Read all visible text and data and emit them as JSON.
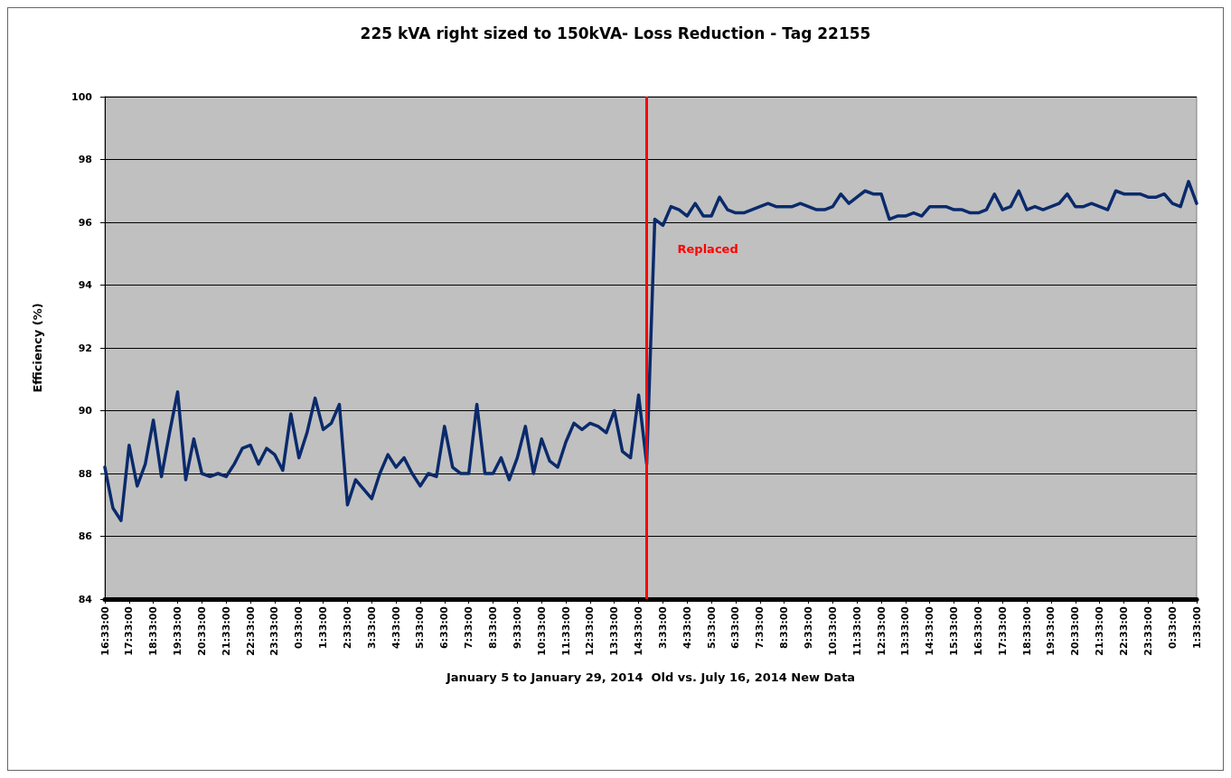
{
  "chart_data": {
    "type": "line",
    "title": "225 kVA right sized to 150kVA- Loss Reduction - Tag 22155",
    "xlabel": "January 5 to January 29, 2014  Old vs. July 16, 2014 New Data",
    "ylabel": "Efficiency (%)",
    "categories": [
      "16:33:00",
      null,
      null,
      "17:33:00",
      null,
      null,
      "18:33:00",
      null,
      null,
      "19:33:00",
      null,
      null,
      "20:33:00",
      null,
      null,
      "21:33:00",
      null,
      null,
      "22:33:00",
      null,
      null,
      "23:33:00",
      null,
      null,
      "0:33:00",
      null,
      null,
      "1:33:00",
      null,
      null,
      "2:33:00",
      null,
      null,
      "3:33:00",
      null,
      null,
      "4:33:00",
      null,
      null,
      "5:33:00",
      null,
      null,
      "6:33:00",
      null,
      null,
      "7:33:00",
      null,
      null,
      "8:33:00",
      null,
      null,
      "9:33:00",
      null,
      null,
      "10:33:00",
      null,
      null,
      "11:33:00",
      null,
      null,
      "12:33:00",
      null,
      null,
      "13:33:00",
      null,
      null,
      "14:33:00",
      null,
      null,
      "3:33:00",
      null,
      null,
      "4:33:00",
      null,
      null,
      "5:33:00",
      null,
      null,
      "6:33:00",
      null,
      null,
      "7:33:00",
      null,
      null,
      "8:33:00",
      null,
      null,
      "9:33:00",
      null,
      null,
      "10:33:00",
      null,
      null,
      "11:33:00",
      null,
      null,
      "12:33:00",
      null,
      null,
      "13:33:00",
      null,
      null,
      "14:33:00",
      null,
      null,
      "15:33:00",
      null,
      null,
      "16:33:00",
      null,
      null,
      "17:33:00",
      null,
      null,
      "18:33:00",
      null,
      null,
      "19:33:00",
      null,
      null,
      "20:33:00",
      null,
      null,
      "21:33:00",
      null,
      null,
      "22:33:00",
      null,
      null,
      "23:33:00",
      null,
      null,
      "0:33:00",
      null,
      null,
      "1:33:00"
    ],
    "series": [
      {
        "color": "#0a2a6b",
        "values": [
          88.2,
          86.9,
          86.5,
          88.9,
          87.6,
          88.3,
          89.7,
          87.9,
          89.3,
          90.6,
          87.8,
          89.1,
          88.0,
          87.9,
          88.0,
          87.9,
          88.3,
          88.8,
          88.9,
          88.3,
          88.8,
          88.6,
          88.1,
          89.9,
          88.5,
          89.3,
          90.4,
          89.4,
          89.6,
          90.2,
          87.0,
          87.8,
          87.5,
          87.2,
          88.0,
          88.6,
          88.2,
          88.5,
          88.0,
          87.6,
          88.0,
          87.9,
          89.5,
          88.2,
          88.0,
          88.0,
          90.2,
          88.0,
          88.0,
          88.5,
          87.8,
          88.5,
          89.5,
          88.0,
          89.1,
          88.4,
          88.2,
          89.0,
          89.6,
          89.4,
          89.6,
          89.5,
          89.3,
          90.0,
          88.7,
          88.5,
          90.5,
          88.3,
          96.1,
          95.9,
          96.5,
          96.4,
          96.2,
          96.6,
          96.2,
          96.2,
          96.8,
          96.4,
          96.3,
          96.3,
          96.4,
          96.5,
          96.6,
          96.5,
          96.5,
          96.5,
          96.6,
          96.5,
          96.4,
          96.4,
          96.5,
          96.9,
          96.6,
          96.8,
          97.0,
          96.9,
          96.9,
          96.1,
          96.2,
          96.2,
          96.3,
          96.2,
          96.5,
          96.5,
          96.5,
          96.4,
          96.4,
          96.3,
          96.3,
          96.4,
          96.9,
          96.4,
          96.5,
          97.0,
          96.4,
          96.5,
          96.4,
          96.5,
          96.6,
          96.9,
          96.5,
          96.5,
          96.6,
          96.5,
          96.4,
          97.0,
          96.9,
          96.9,
          96.9,
          96.8,
          96.8,
          96.9,
          96.6,
          96.5,
          97.3,
          96.6
        ]
      }
    ],
    "ylim": [
      84,
      100
    ],
    "yticks": [
      84,
      86,
      88,
      90,
      92,
      94,
      96,
      98,
      100
    ],
    "annotations": [
      "Replaced"
    ],
    "grid": "y",
    "marker": "none",
    "line_style": "solid"
  }
}
